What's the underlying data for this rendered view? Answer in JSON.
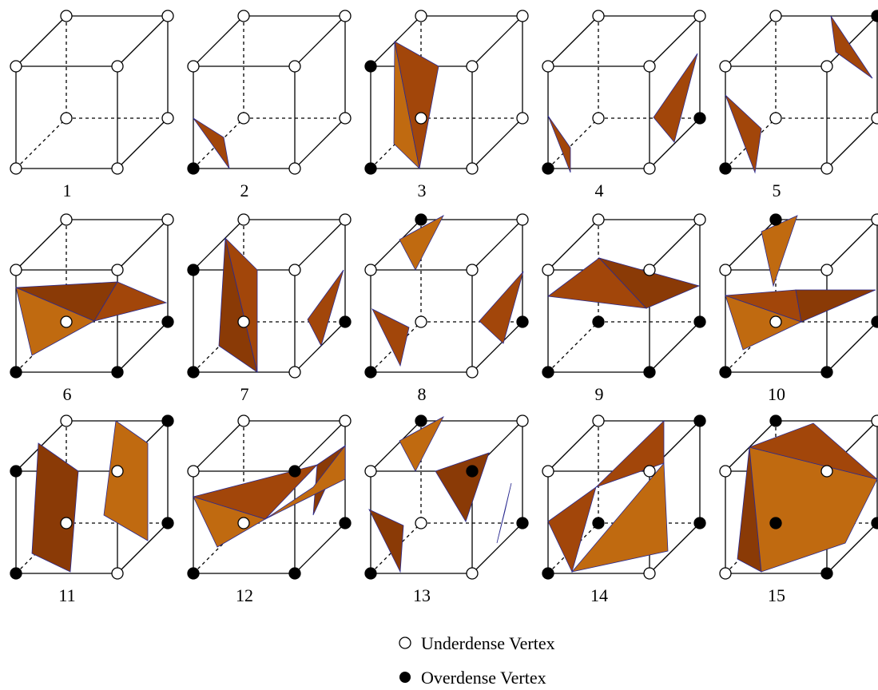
{
  "case_labels": [
    "1",
    "2",
    "3",
    "4",
    "5",
    "6",
    "7",
    "8",
    "9",
    "10",
    "11",
    "12",
    "13",
    "14",
    "15"
  ],
  "legend": {
    "underdense": "Underdense Vertex",
    "overdense": "Overdense Vertex"
  }
}
